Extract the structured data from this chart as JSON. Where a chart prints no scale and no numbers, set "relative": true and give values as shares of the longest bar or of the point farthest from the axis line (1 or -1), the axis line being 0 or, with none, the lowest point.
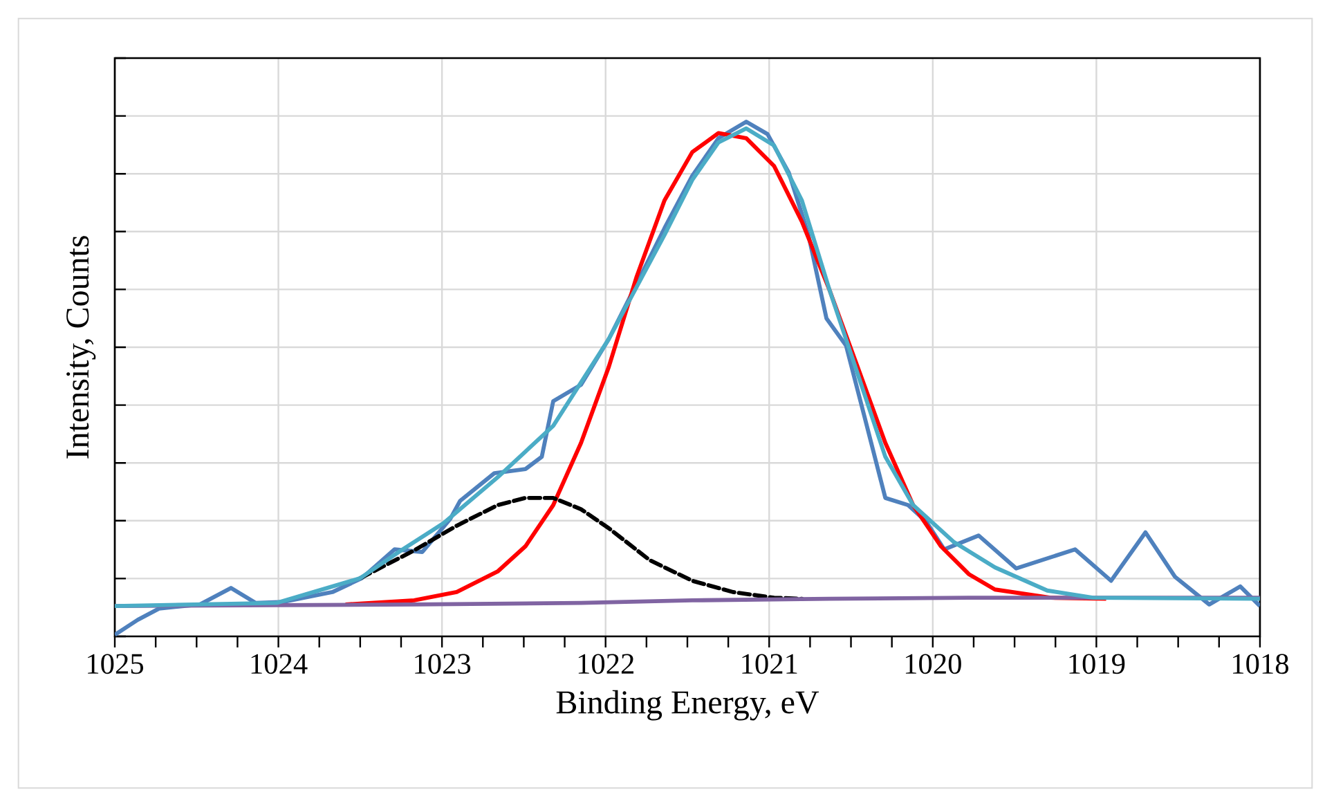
{
  "chart_data": {
    "type": "line",
    "relative": true,
    "xlabel": "Binding  Energy, eV",
    "ylabel": "Intensity, Counts",
    "xlim": [
      1025,
      1018
    ],
    "xticks": [
      1025,
      1024,
      1023,
      1022,
      1021,
      1020,
      1019,
      1018
    ],
    "grid": true,
    "marker": "none",
    "line_style": "solid",
    "series": [
      {
        "color": "#4f81bd",
        "x": [
          1025.0,
          1024.86,
          1024.73,
          1024.48,
          1024.29,
          1024.14,
          1023.97,
          1023.67,
          1023.49,
          1023.29,
          1023.12,
          1022.95,
          1022.89,
          1022.68,
          1022.49,
          1022.39,
          1022.32,
          1022.15,
          1021.98,
          1021.81,
          1021.64,
          1021.47,
          1021.31,
          1021.14,
          1021.01,
          1020.88,
          1020.76,
          1020.65,
          1020.53,
          1020.42,
          1020.29,
          1020.15,
          1020.04,
          1019.93,
          1019.72,
          1019.49,
          1019.13,
          1018.91,
          1018.7,
          1018.52,
          1018.31,
          1018.12,
          1018.0
        ],
        "values": [
          0.003,
          0.032,
          0.054,
          0.062,
          0.094,
          0.065,
          0.067,
          0.086,
          0.113,
          0.169,
          0.164,
          0.228,
          0.263,
          0.317,
          0.325,
          0.349,
          0.457,
          0.489,
          0.578,
          0.685,
          0.793,
          0.895,
          0.968,
          1,
          0.976,
          0.901,
          0.78,
          0.618,
          0.565,
          0.43,
          0.269,
          0.255,
          0.223,
          0.169,
          0.196,
          0.132,
          0.169,
          0.108,
          0.202,
          0.116,
          0.062,
          0.097,
          0.059
        ]
      },
      {
        "color": "#ff0000",
        "x": [
          1023.59,
          1023.17,
          1022.91,
          1022.66,
          1022.49,
          1022.32,
          1022.15,
          1021.98,
          1021.81,
          1021.64,
          1021.47,
          1021.31,
          1021.14,
          1020.97,
          1020.8,
          1020.63,
          1020.46,
          1020.29,
          1020.12,
          1019.95,
          1019.78,
          1019.62,
          1019.28,
          1018.94
        ],
        "values": [
          0.062,
          0.07,
          0.086,
          0.126,
          0.175,
          0.255,
          0.376,
          0.524,
          0.699,
          0.847,
          0.941,
          0.978,
          0.968,
          0.914,
          0.806,
          0.672,
          0.524,
          0.376,
          0.255,
          0.175,
          0.121,
          0.091,
          0.075,
          0.073
        ]
      },
      {
        "color": "#000000",
        "line_style": "dashed",
        "x": [
          1023.5,
          1023.17,
          1022.91,
          1022.66,
          1022.49,
          1022.32,
          1022.15,
          1021.98,
          1021.73,
          1021.47,
          1021.22,
          1020.97,
          1020.8
        ],
        "values": [
          0.113,
          0.167,
          0.215,
          0.255,
          0.269,
          0.269,
          0.247,
          0.21,
          0.148,
          0.108,
          0.086,
          0.075,
          0.073
        ]
      },
      {
        "color": "#8064a2",
        "x": [
          1025.0,
          1023.17,
          1022.15,
          1021.47,
          1020.63,
          1019.78,
          1018.0
        ],
        "values": [
          0.059,
          0.062,
          0.065,
          0.07,
          0.073,
          0.075,
          0.075
        ]
      },
      {
        "color": "#4bacc6",
        "x": [
          1025.0,
          1024.01,
          1023.5,
          1023.25,
          1022.99,
          1022.66,
          1022.32,
          1021.98,
          1021.64,
          1021.47,
          1021.31,
          1021.14,
          1020.97,
          1020.8,
          1020.63,
          1020.46,
          1020.29,
          1020.12,
          1019.87,
          1019.62,
          1019.3,
          1019.02,
          1018.0
        ],
        "values": [
          0.059,
          0.065,
          0.113,
          0.167,
          0.22,
          0.309,
          0.409,
          0.578,
          0.78,
          0.887,
          0.96,
          0.987,
          0.954,
          0.847,
          0.672,
          0.511,
          0.349,
          0.255,
          0.183,
          0.134,
          0.089,
          0.075,
          0.073
        ]
      }
    ]
  }
}
